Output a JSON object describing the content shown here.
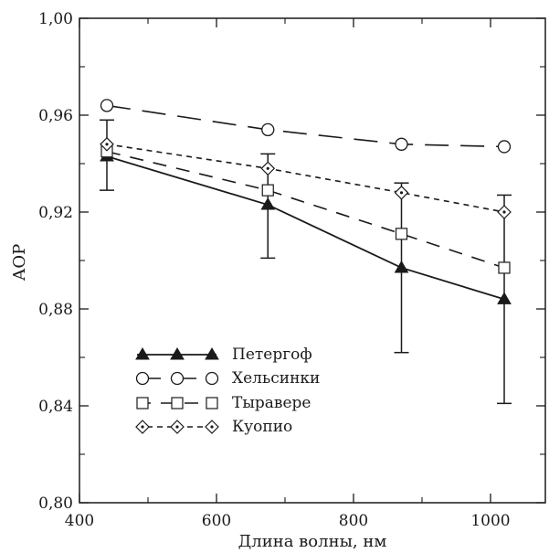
{
  "chart_data": {
    "type": "line",
    "title": "",
    "xlabel": "Длина волны, нм",
    "ylabel": "АОР",
    "xlim": [
      400,
      1080
    ],
    "ylim": [
      0.8,
      1.0
    ],
    "xticks": [
      400,
      600,
      800,
      1000
    ],
    "xtick_labels": [
      "400",
      "600",
      "800",
      "1000"
    ],
    "yticks": [
      0.8,
      0.84,
      0.88,
      0.92,
      0.96,
      1.0
    ],
    "ytick_labels": [
      "0,80",
      "0,84",
      "0,88",
      "0,92",
      "0,96",
      "1,00"
    ],
    "grid": false,
    "legend_position": "bottom-left",
    "x": [
      440,
      675,
      870,
      1020
    ],
    "series": [
      {
        "name": "Петергоф",
        "values": [
          0.943,
          0.923,
          0.897,
          0.884
        ],
        "err_low": [
          0.929,
          0.901,
          0.862,
          0.841
        ],
        "err_high": [
          0.958,
          0.944,
          0.932,
          0.927
        ],
        "marker": "filled-triangle",
        "line_style": "solid"
      },
      {
        "name": "Хельсинки",
        "values": [
          0.964,
          0.954,
          0.948,
          0.947
        ],
        "marker": "open-circle",
        "line_style": "long-dash"
      },
      {
        "name": "Тыравере",
        "values": [
          0.945,
          0.929,
          0.911,
          0.897
        ],
        "marker": "open-square",
        "line_style": "dash"
      },
      {
        "name": "Куопио",
        "values": [
          0.948,
          0.938,
          0.928,
          0.92
        ],
        "marker": "open-diamond",
        "line_style": "short-dash"
      }
    ]
  }
}
